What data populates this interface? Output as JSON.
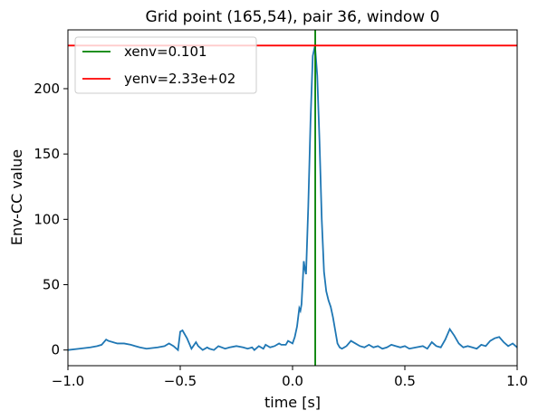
{
  "chart_data": {
    "type": "line",
    "title": "Grid point (165,54), pair 36, window 0",
    "xlabel": "time [s]",
    "ylabel": "Env-CC value",
    "xlim": [
      -1.0,
      1.0
    ],
    "ylim": [
      -12,
      245
    ],
    "xticks": [
      -1.0,
      -0.5,
      0.0,
      0.5,
      1.0
    ],
    "xtick_labels": [
      "−1.0",
      "−0.5",
      "0.0",
      "0.5",
      "1.0"
    ],
    "yticks": [
      0,
      50,
      100,
      150,
      200
    ],
    "ytick_labels": [
      "0",
      "50",
      "100",
      "150",
      "200"
    ],
    "grid": false,
    "legend_position": "top-left",
    "series": [
      {
        "color": "#1f77b4",
        "x": [
          -1.0,
          -0.95,
          -0.9,
          -0.87,
          -0.85,
          -0.83,
          -0.82,
          -0.8,
          -0.78,
          -0.75,
          -0.72,
          -0.7,
          -0.68,
          -0.65,
          -0.6,
          -0.57,
          -0.55,
          -0.53,
          -0.51,
          -0.5,
          -0.49,
          -0.47,
          -0.45,
          -0.43,
          -0.42,
          -0.4,
          -0.38,
          -0.37,
          -0.35,
          -0.33,
          -0.3,
          -0.28,
          -0.25,
          -0.22,
          -0.2,
          -0.18,
          -0.17,
          -0.15,
          -0.13,
          -0.12,
          -0.1,
          -0.08,
          -0.06,
          -0.05,
          -0.03,
          -0.02,
          -0.01,
          0.0,
          0.01,
          0.02,
          0.03,
          0.035,
          0.04,
          0.05,
          0.055,
          0.06,
          0.07,
          0.08,
          0.09,
          0.1,
          0.11,
          0.12,
          0.13,
          0.14,
          0.15,
          0.16,
          0.17,
          0.18,
          0.19,
          0.2,
          0.21,
          0.22,
          0.24,
          0.26,
          0.28,
          0.3,
          0.32,
          0.34,
          0.36,
          0.38,
          0.4,
          0.42,
          0.44,
          0.46,
          0.48,
          0.5,
          0.52,
          0.55,
          0.58,
          0.6,
          0.62,
          0.64,
          0.66,
          0.68,
          0.7,
          0.72,
          0.74,
          0.76,
          0.78,
          0.8,
          0.82,
          0.84,
          0.86,
          0.88,
          0.9,
          0.92,
          0.94,
          0.96,
          0.98,
          1.0
        ],
        "y": [
          0,
          1,
          2,
          3,
          4,
          8,
          7,
          6,
          5,
          5,
          4,
          3,
          2,
          1,
          2,
          3,
          5,
          3,
          0,
          14,
          15,
          9,
          1,
          6,
          3,
          0,
          2,
          1,
          0,
          3,
          1,
          2,
          3,
          2,
          1,
          2,
          0,
          3,
          1,
          4,
          2,
          3,
          5,
          4,
          4,
          7,
          6,
          5,
          10,
          18,
          32,
          30,
          35,
          68,
          62,
          58,
          110,
          175,
          225,
          233,
          210,
          160,
          100,
          60,
          45,
          38,
          33,
          25,
          15,
          5,
          2,
          1,
          3,
          7,
          5,
          3,
          2,
          4,
          2,
          3,
          1,
          2,
          4,
          3,
          2,
          3,
          1,
          2,
          3,
          1,
          6,
          3,
          2,
          8,
          16,
          11,
          5,
          2,
          3,
          2,
          1,
          4,
          3,
          7,
          9,
          10,
          6,
          3,
          5,
          2
        ]
      }
    ],
    "legend": [
      {
        "label": "xenv=0.101",
        "color": "#008000"
      },
      {
        "label": "yenv=2.33e+02",
        "color": "#ff0000"
      }
    ],
    "xenv": 0.101,
    "yenv": 233
  }
}
